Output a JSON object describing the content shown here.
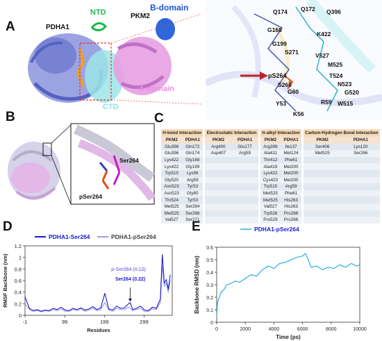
{
  "panels": {
    "a": "A",
    "b": "B",
    "c": "C",
    "d": "D",
    "e": "E"
  },
  "panel_a": {
    "labels": {
      "pdha1": "PDHA1",
      "ntd": "NTD",
      "pkm2": "PKM2",
      "b_domain": "B-domain",
      "a_domain": "A-domain",
      "ctd": "CTD"
    },
    "residues": [
      "Q174",
      "Q172",
      "Q396",
      "G168",
      "K422",
      "G199",
      "S271",
      "V527",
      "M525",
      "pS264",
      "T524",
      "N523",
      "S266",
      "G520",
      "G60",
      "Y53",
      "R59",
      "W515",
      "K56"
    ],
    "colors": {
      "pdha1": "#7f8ad6",
      "pkm2": "#e0a0e0",
      "ntd": "#18b84a",
      "b_domain": "#1a55d8",
      "a_domain": "#e98ee6",
      "ctd": "#8fe0e6",
      "arrow": "#c0202a"
    }
  },
  "panel_b": {
    "labels": {
      "ser264": "Ser264",
      "pser264": "pSer264"
    },
    "colors": {
      "ser": "#c020c0",
      "pser": "#e05010"
    }
  },
  "panel_c": {
    "headers": [
      "H-bond Interaction",
      "Electrostatic Interaction",
      "π-alkyl Interaction",
      "Carbon-Hydrogen Bond Interaction"
    ],
    "subheaders": [
      "PKM2",
      "PDHA1",
      "PKM2",
      "PDHA1",
      "PKM2",
      "PDHA1",
      "PKM2",
      "PDHA1"
    ],
    "rows": [
      [
        "Glu396",
        "Gln172",
        "Arg400",
        "Glu177",
        "Arg399",
        "Ile137",
        "Ser406",
        "Lys120"
      ],
      [
        "Glu396",
        "Gln174",
        "Asp407",
        "Arg59",
        "Ala411",
        "Met124",
        "Met525",
        "Ser266"
      ],
      [
        "Lys422",
        "Gly168",
        "",
        "",
        "Thr412",
        "Phe61",
        "",
        ""
      ],
      [
        "Lys422",
        "Gly199",
        "",
        "",
        "Ala419",
        "Met200",
        "",
        ""
      ],
      [
        "Trp515",
        "Lys56",
        "",
        "",
        "Lys422",
        "Met200",
        "",
        ""
      ],
      [
        "Gly520",
        "Arg59",
        "",
        "",
        "Cys423",
        "Met200",
        "",
        ""
      ],
      [
        "Asn523",
        "Tyr53",
        "",
        "",
        "Trp515",
        "Arg59",
        "",
        ""
      ],
      [
        "Asn523",
        "Gly60",
        "",
        "",
        "Met525",
        "Phe61",
        "",
        ""
      ],
      [
        "Thr524",
        "Tyr53",
        "",
        "",
        "Met525",
        "His263",
        "",
        ""
      ],
      [
        "Met525",
        "Ser264",
        "",
        "",
        "Val527",
        "His263",
        "",
        ""
      ],
      [
        "Met525",
        "Ser266",
        "",
        "",
        "Trp528",
        "Pro268",
        "",
        ""
      ],
      [
        "Val527",
        "Ser271",
        "",
        "",
        "Pro529",
        "Pro268",
        "",
        ""
      ]
    ]
  },
  "chart_data": [
    {
      "type": "line",
      "panel": "D",
      "title": "",
      "xlabel": "Residues",
      "ylabel": "RMSF Backbone (nm)",
      "xticks": [
        "-1",
        "99",
        "199",
        "299"
      ],
      "yticks": [
        "0",
        "0.2",
        "0.4",
        "0.6",
        "0.8",
        "1",
        "1.2"
      ],
      "xlim": [
        -1,
        370
      ],
      "ylim": [
        0,
        1.2
      ],
      "legend_position": "top",
      "annotations": [
        "p-Ser264 (0.12)",
        "Ser264 (0.22)"
      ],
      "series": [
        {
          "name": "PDHA1-Ser264",
          "color": "#1a1ad0",
          "x": [
            -1,
            10,
            20,
            30,
            40,
            50,
            60,
            70,
            80,
            90,
            100,
            110,
            120,
            130,
            140,
            150,
            160,
            170,
            180,
            190,
            200,
            210,
            220,
            230,
            240,
            250,
            260,
            264,
            270,
            280,
            290,
            300,
            310,
            320,
            330,
            340,
            345,
            350,
            355,
            360,
            365
          ],
          "y": [
            0.32,
            0.12,
            0.08,
            0.1,
            0.07,
            0.09,
            0.08,
            0.12,
            0.1,
            0.14,
            0.09,
            0.08,
            0.12,
            0.1,
            0.13,
            0.09,
            0.11,
            0.15,
            0.1,
            0.13,
            0.38,
            0.11,
            0.09,
            0.16,
            0.12,
            0.13,
            0.2,
            0.22,
            0.1,
            0.12,
            0.16,
            0.09,
            0.08,
            0.14,
            0.12,
            0.28,
            1.05,
            0.55,
            0.62,
            0.45,
            0.7
          ]
        },
        {
          "name": "PDHA1-pSer264",
          "color": "#a49ae8",
          "x": [
            -1,
            10,
            20,
            30,
            40,
            50,
            60,
            70,
            80,
            90,
            100,
            110,
            120,
            130,
            140,
            150,
            160,
            170,
            180,
            190,
            200,
            210,
            220,
            230,
            240,
            250,
            260,
            264,
            270,
            280,
            290,
            300,
            310,
            320,
            330,
            340,
            345,
            350,
            355,
            360,
            365
          ],
          "y": [
            0.2,
            0.1,
            0.07,
            0.08,
            0.06,
            0.08,
            0.07,
            0.1,
            0.08,
            0.11,
            0.07,
            0.07,
            0.1,
            0.08,
            0.11,
            0.07,
            0.09,
            0.12,
            0.08,
            0.1,
            0.22,
            0.09,
            0.07,
            0.12,
            0.1,
            0.1,
            0.14,
            0.12,
            0.08,
            0.1,
            0.12,
            0.07,
            0.07,
            0.11,
            0.1,
            0.22,
            0.85,
            0.5,
            0.55,
            0.4,
            0.6
          ]
        }
      ]
    },
    {
      "type": "line",
      "panel": "E",
      "title": "",
      "xlabel": "Time (ps)",
      "ylabel": "Backbone RMSD (nm)",
      "xticks": [
        "0",
        "2000",
        "4000",
        "6000",
        "8000",
        "10000"
      ],
      "yticks": [
        "0",
        "0.1",
        "0.2",
        "0.3",
        "0.4",
        "0.5",
        "0.6"
      ],
      "xlim": [
        0,
        10000
      ],
      "ylim": [
        0,
        0.6
      ],
      "legend_position": "top",
      "series": [
        {
          "name": "PDHA1-pSer264",
          "color": "#18a8e0",
          "x": [
            0,
            50,
            100,
            200,
            300,
            500,
            700,
            1000,
            1300,
            1600,
            2000,
            2400,
            2800,
            3200,
            3600,
            4000,
            4400,
            4800,
            5200,
            5600,
            6000,
            6200,
            6400,
            6600,
            7000,
            7400,
            7800,
            8200,
            8600,
            9000,
            9400,
            9800,
            10000
          ],
          "y": [
            0.05,
            0.15,
            0.18,
            0.2,
            0.24,
            0.26,
            0.3,
            0.31,
            0.33,
            0.32,
            0.35,
            0.38,
            0.37,
            0.42,
            0.45,
            0.43,
            0.47,
            0.48,
            0.5,
            0.52,
            0.53,
            0.55,
            0.5,
            0.44,
            0.45,
            0.42,
            0.44,
            0.43,
            0.46,
            0.44,
            0.47,
            0.45,
            0.46
          ]
        }
      ]
    }
  ]
}
